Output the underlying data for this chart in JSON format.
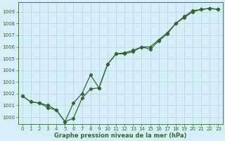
{
  "xlabel": "Graphe pression niveau de la mer (hPa)",
  "bg_color": "#d6eef8",
  "plot_bg_color": "#d6eef8",
  "grid_color": "#b0d0e0",
  "line_color": "#336633",
  "xlim_min": -0.5,
  "xlim_max": 23.5,
  "ylim_min": 999.4,
  "ylim_max": 1009.8,
  "yticks": [
    1000,
    1001,
    1002,
    1003,
    1004,
    1005,
    1006,
    1007,
    1008,
    1009
  ],
  "xticks": [
    0,
    1,
    2,
    3,
    4,
    5,
    6,
    7,
    8,
    9,
    10,
    11,
    12,
    13,
    14,
    15,
    16,
    17,
    18,
    19,
    20,
    21,
    22,
    23
  ],
  "series1_x": [
    0,
    1,
    2,
    3,
    4,
    5,
    6,
    7,
    8,
    9,
    10,
    11,
    12,
    13,
    14,
    15,
    16,
    17,
    18,
    19,
    20,
    21,
    22,
    23
  ],
  "series1_y": [
    1001.8,
    1001.3,
    1001.2,
    1000.8,
    1000.6,
    999.6,
    999.9,
    1001.6,
    1002.4,
    1002.5,
    1004.5,
    1005.4,
    1005.5,
    1005.7,
    1006.0,
    1005.8,
    1006.5,
    1007.1,
    1008.0,
    1008.6,
    1009.1,
    1009.2,
    1009.3,
    1009.2
  ],
  "series2_x": [
    0,
    1,
    2,
    3,
    4,
    5,
    6,
    7,
    8,
    9,
    10,
    11,
    12,
    13,
    14,
    15,
    16,
    17,
    18,
    19,
    20,
    21,
    22,
    23
  ],
  "series2_y": [
    1001.8,
    1001.3,
    1001.2,
    1001.0,
    1000.6,
    999.6,
    1001.2,
    1002.0,
    1003.6,
    1002.5,
    1004.5,
    1005.4,
    1005.4,
    1005.6,
    1006.0,
    1006.0,
    1006.6,
    1007.2,
    1008.0,
    1008.5,
    1009.0,
    1009.2,
    1009.3,
    1009.2
  ],
  "tick_fontsize": 5.0,
  "xlabel_fontsize": 6.0,
  "linewidth": 0.9,
  "markersize": 2.2
}
